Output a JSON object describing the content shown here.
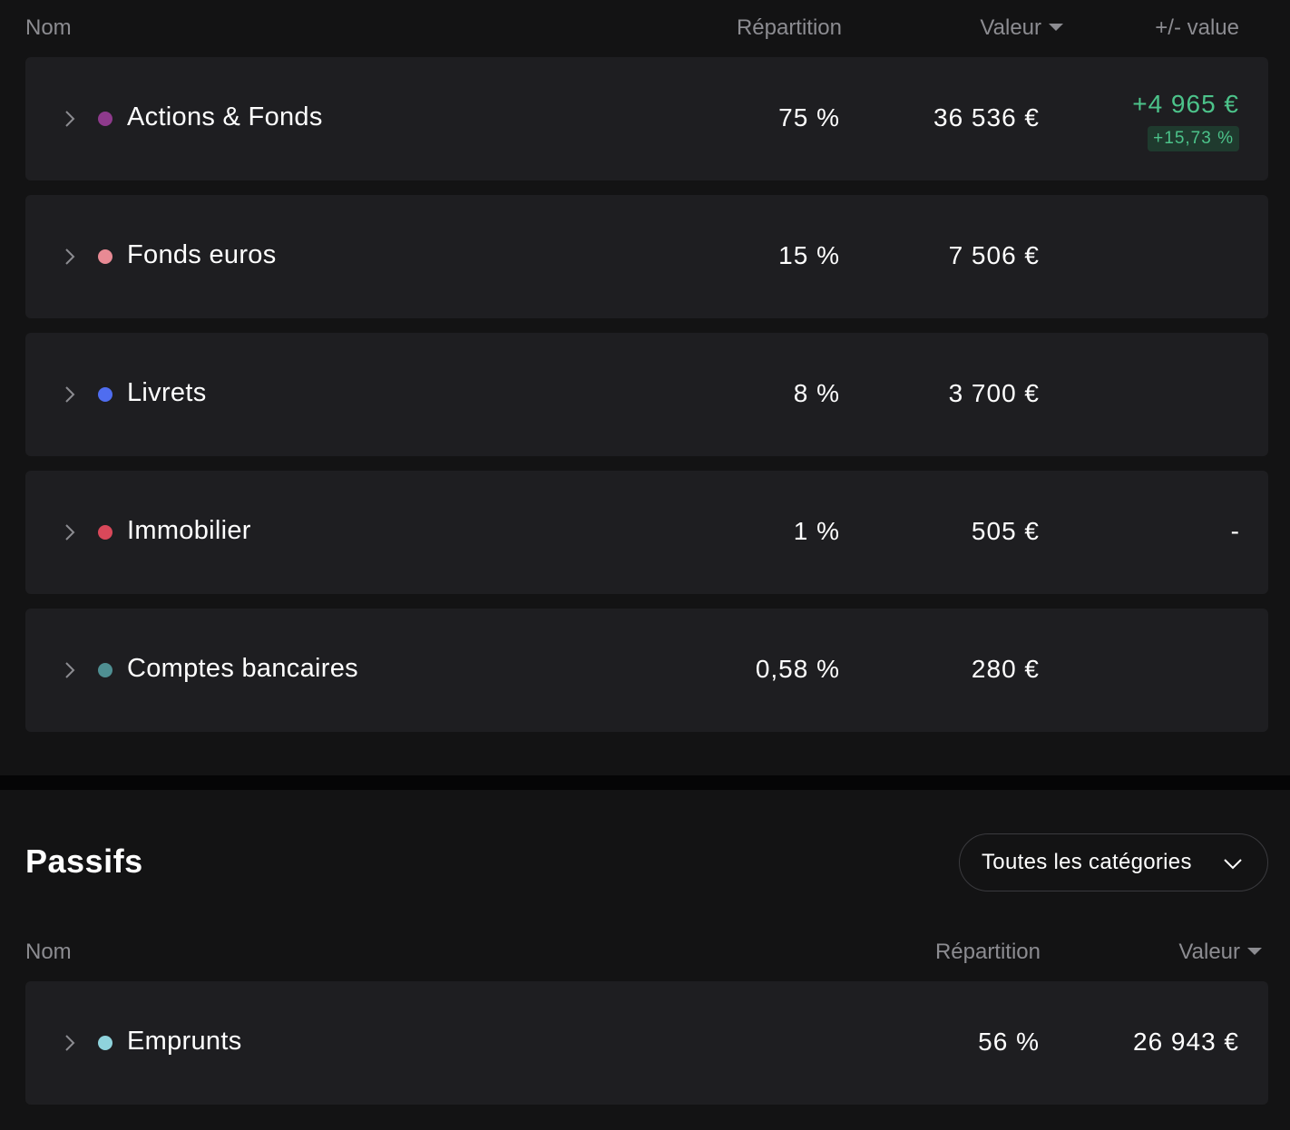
{
  "actifs": {
    "columns": {
      "name": "Nom",
      "allocation": "Répartition",
      "value": "Valeur",
      "gain": "+/- value"
    },
    "rows": [
      {
        "name": "Actions & Fonds",
        "color": "#8e3a8c",
        "allocation": "75 %",
        "value": "36 536 €",
        "gain_amount": "+4 965 €",
        "gain_percent": "+15,73 %"
      },
      {
        "name": "Fonds euros",
        "color": "#e88a94",
        "allocation": "15 %",
        "value": "7 506 €"
      },
      {
        "name": "Livrets",
        "color": "#4f6df0",
        "allocation": "8 %",
        "value": "3 700 €"
      },
      {
        "name": "Immobilier",
        "color": "#d9485a",
        "allocation": "1 %",
        "value": "505 €",
        "gain_amount": "-"
      },
      {
        "name": "Comptes bancaires",
        "color": "#4f8f92",
        "allocation": "0,58 %",
        "value": "280 €"
      }
    ]
  },
  "passifs": {
    "title": "Passifs",
    "filter_label": "Toutes les catégories",
    "columns": {
      "name": "Nom",
      "allocation": "Répartition",
      "value": "Valeur"
    },
    "rows": [
      {
        "name": "Emprunts",
        "color": "#8fd3dc",
        "allocation": "56 %",
        "value": "26 943 €"
      }
    ]
  },
  "colors": {
    "background": "#131314",
    "row_background": "#1e1e21",
    "gain_positive": "#4cc38a",
    "header_text": "#8c8c91"
  }
}
